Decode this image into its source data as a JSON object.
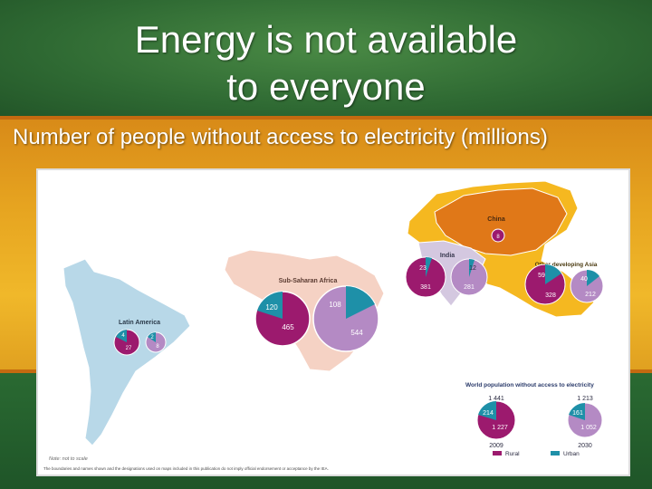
{
  "slide": {
    "title_line1": "Energy is not available",
    "title_line2": "to everyone",
    "subtitle": "Number of people without access to electricity (millions)"
  },
  "colors": {
    "rural": "#9c1a6e",
    "urban": "#1e90a8",
    "pie_light": "#b48ac4",
    "latin_america": "#b8d8e8",
    "africa": "#f5d2c4",
    "china": "#e07818",
    "other_asia": "#f5b820",
    "india": "#d4c8e0"
  },
  "map": {
    "note": "Note: not to scale",
    "disclaimer": "The boundaries and names shown and the designations used on maps included in this publication do not imply official endorsement or acceptance by the IEA.",
    "regions": {
      "china": {
        "label": "China",
        "urban": "8"
      },
      "india": {
        "label": "India",
        "rural": "23",
        "total": "381",
        "urban": "12",
        "urban_total": "281"
      },
      "other_asia": {
        "label": "Other developing Asia",
        "rural": "59",
        "total": "328",
        "urban": "40",
        "urban_total": "212"
      },
      "africa": {
        "label": "Sub-Saharan Africa",
        "rural": "120",
        "total": "465",
        "urban": "108",
        "urban_total": "544"
      },
      "latin_america": {
        "label": "Latin America",
        "rural": "4",
        "total": "27",
        "urban": "2",
        "urban_total": "8"
      }
    },
    "world": {
      "label": "World population without access to electricity",
      "total_2009": "1 441",
      "urban_2009": "214",
      "rural_2009": "1 227",
      "year_2009": "2009",
      "total_2030": "1 213",
      "urban_2030": "161",
      "rural_2030": "1 052",
      "year_2030": "2030",
      "legend_rural": "Rural",
      "legend_urban": "Urban"
    }
  }
}
